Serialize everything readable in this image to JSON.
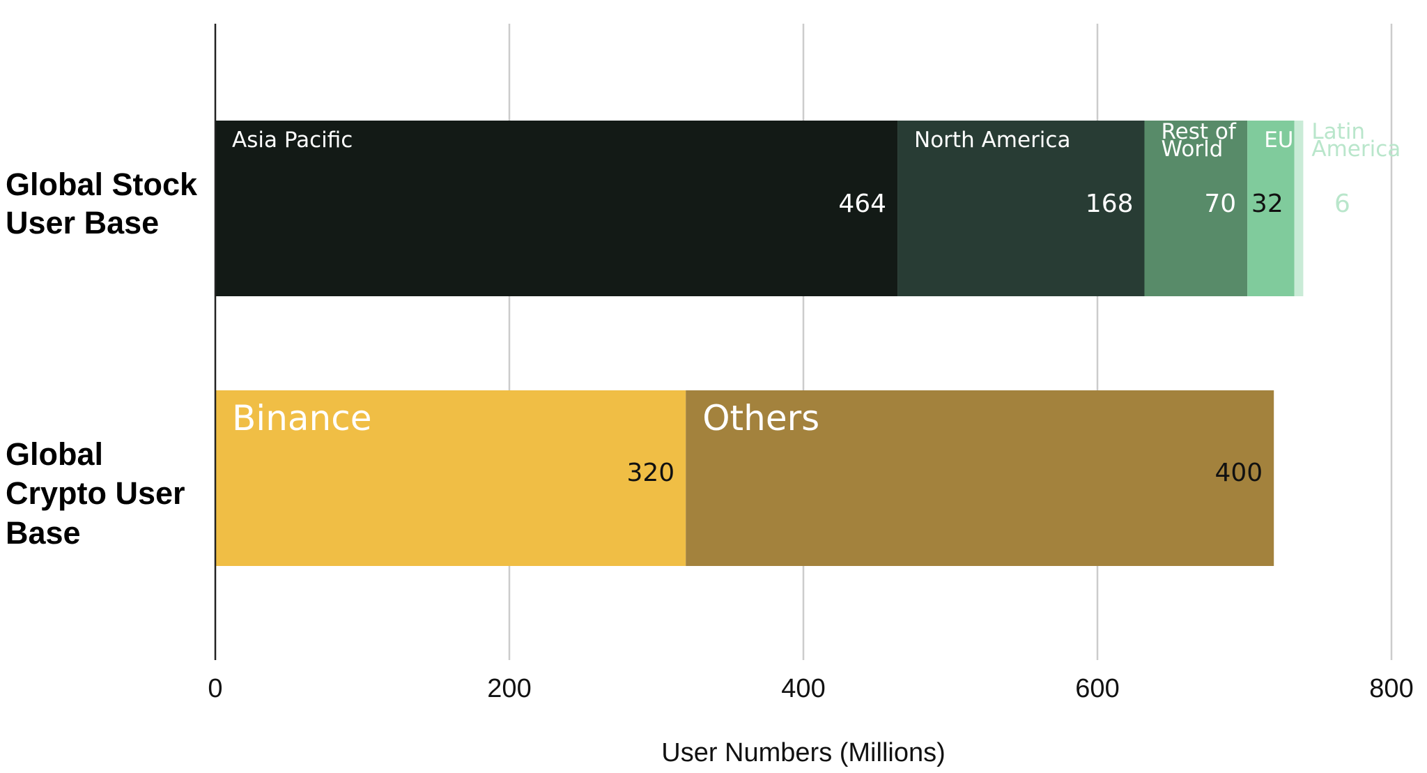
{
  "chart_data": {
    "type": "bar",
    "orientation": "horizontal",
    "stacked": true,
    "categories": [
      "Global Stock User Base",
      "Global Crypto User Base"
    ],
    "bars": [
      {
        "category": "Global Stock User Base",
        "segments": [
          {
            "name": "Asia Pacific",
            "value": 464,
            "color": "#131a16"
          },
          {
            "name": "North America",
            "value": 168,
            "color": "#283c34"
          },
          {
            "name": "Rest of World",
            "value": 70,
            "color": "#588b69"
          },
          {
            "name": "EU",
            "value": 32,
            "color": "#80cb9c"
          },
          {
            "name": "Latin America",
            "value": 6,
            "color": "#c9ebd6"
          }
        ]
      },
      {
        "category": "Global Crypto User Base",
        "segments": [
          {
            "name": "Binance",
            "value": 320,
            "color": "#f0be45"
          },
          {
            "name": "Others",
            "value": 400,
            "color": "#a3823d"
          }
        ]
      }
    ],
    "xlabel": "User Numbers (Millions)",
    "ylabel": "",
    "xlim": [
      0,
      800
    ],
    "xticks": [
      0,
      200,
      400,
      600,
      800
    ],
    "grid": true,
    "legend": "none"
  }
}
